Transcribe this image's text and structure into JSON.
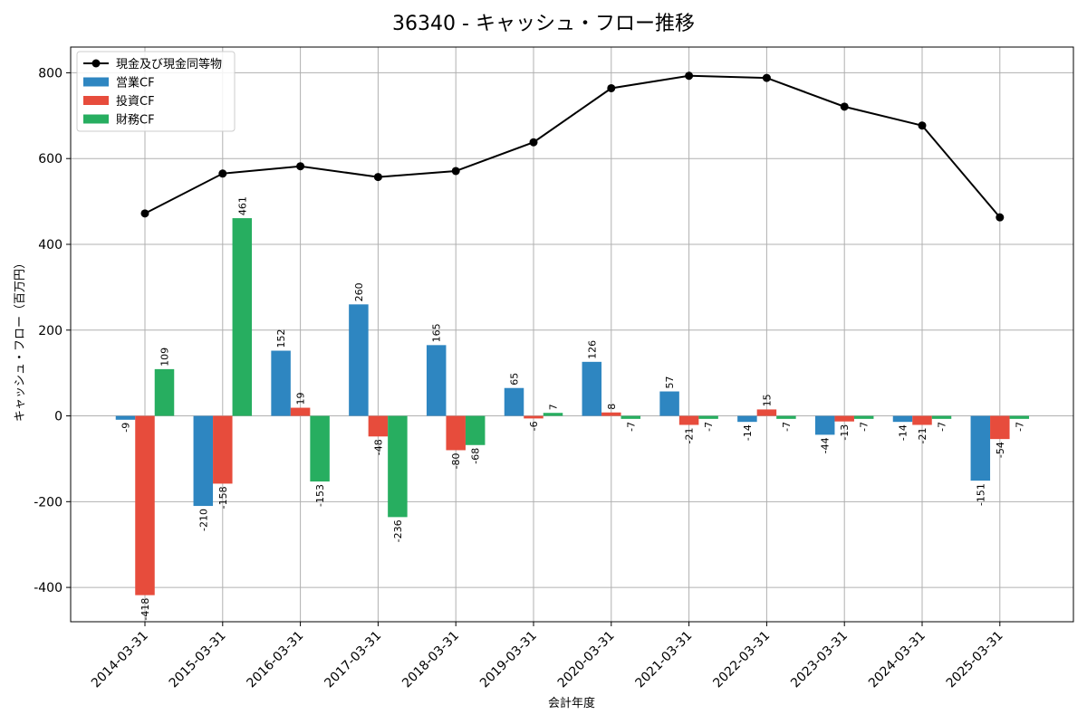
{
  "chart_data": {
    "type": "bar",
    "title": "36340 - キャッシュ・フロー推移",
    "xlabel": "会計年度",
    "ylabel": "キャッシュ・フロー（百万円）",
    "ylim": [
      -480,
      860
    ],
    "yticks": [
      -400,
      -200,
      0,
      200,
      400,
      600,
      800
    ],
    "grid": true,
    "legend_position": "top-left",
    "categories": [
      "2014-03-31",
      "2015-03-31",
      "2016-03-31",
      "2017-03-31",
      "2018-03-31",
      "2019-03-31",
      "2020-03-31",
      "2021-03-31",
      "2022-03-31",
      "2023-03-31",
      "2024-03-31",
      "2025-03-31"
    ],
    "series": [
      {
        "name": "営業CF",
        "kind": "bar",
        "color": "#2e86c1",
        "values": [
          -9,
          -210,
          152,
          260,
          165,
          65,
          126,
          57,
          -14,
          -44,
          -14,
          -151
        ]
      },
      {
        "name": "投資CF",
        "kind": "bar",
        "color": "#e74c3c",
        "values": [
          -418,
          -158,
          19,
          -48,
          -80,
          -6,
          8,
          -21,
          15,
          -13,
          -21,
          -54
        ]
      },
      {
        "name": "財務CF",
        "kind": "bar",
        "color": "#27ae60",
        "values": [
          109,
          461,
          -153,
          -236,
          -68,
          7,
          -7,
          -7,
          -7,
          -7,
          -7,
          -7
        ]
      },
      {
        "name": "現金及び現金同等物",
        "kind": "line",
        "color": "#000000",
        "values": [
          472,
          565,
          582,
          557,
          571,
          638,
          764,
          793,
          788,
          721,
          677,
          463
        ]
      }
    ]
  }
}
